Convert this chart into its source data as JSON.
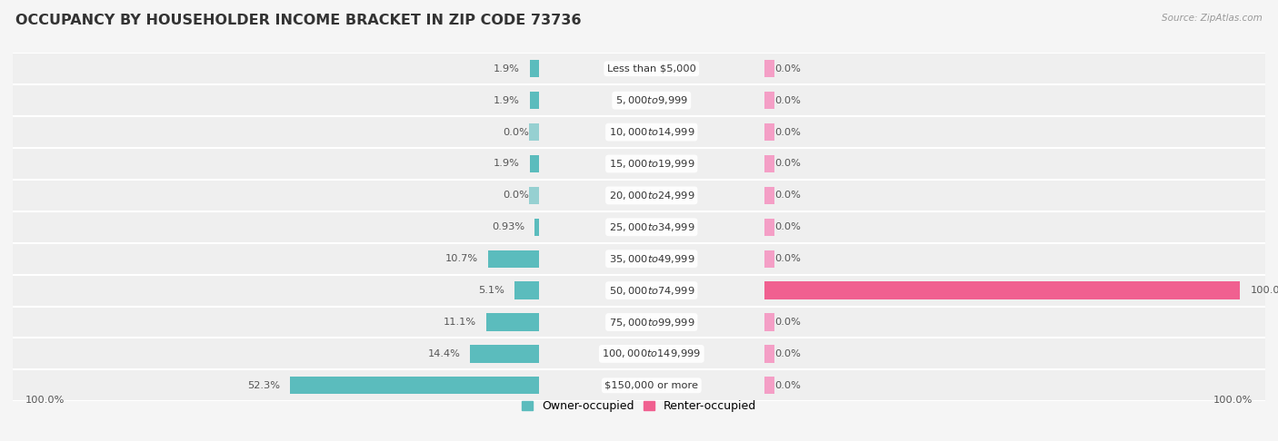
{
  "title": "OCCUPANCY BY HOUSEHOLDER INCOME BRACKET IN ZIP CODE 73736",
  "source": "Source: ZipAtlas.com",
  "categories": [
    "Less than $5,000",
    "$5,000 to $9,999",
    "$10,000 to $14,999",
    "$15,000 to $19,999",
    "$20,000 to $24,999",
    "$25,000 to $34,999",
    "$35,000 to $49,999",
    "$50,000 to $74,999",
    "$75,000 to $99,999",
    "$100,000 to $149,999",
    "$150,000 or more"
  ],
  "owner_pct": [
    1.9,
    1.9,
    0.0,
    1.9,
    0.0,
    0.93,
    10.7,
    5.1,
    11.1,
    14.4,
    52.3
  ],
  "renter_pct": [
    0.0,
    0.0,
    0.0,
    0.0,
    0.0,
    0.0,
    0.0,
    100.0,
    0.0,
    0.0,
    0.0
  ],
  "owner_color": "#5bbcbd",
  "renter_color": "#f77db5",
  "renter_color_full": "#f06090",
  "bg_row_light": "#efefef",
  "bg_row_dark": "#e8e8e8",
  "bg_fig_color": "#f5f5f5",
  "title_fontsize": 11.5,
  "bar_height": 0.55,
  "cat_label_fontsize": 8.2,
  "pct_label_fontsize": 8.2
}
